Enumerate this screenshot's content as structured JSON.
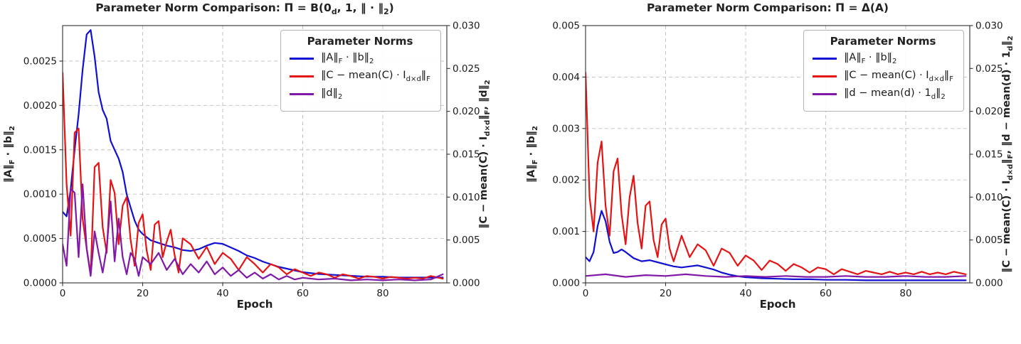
{
  "page": {
    "background": "#ffffff"
  },
  "chart_data": [
    {
      "type": "line",
      "title": "Parameter Norm Comparison: Π = B(0_d, 1, ‖ · ‖_2)",
      "xlabel": "Epoch",
      "ylabel_left": "‖A‖_F · ‖b‖_2",
      "ylabel_right": "‖C − mean(C) · I_{d×d}‖_F, ‖d‖_2",
      "legend_title": "Parameter Norms",
      "legend_position": "upper right",
      "grid": true,
      "xlim": [
        0,
        96
      ],
      "ylim_left": [
        0,
        0.0029
      ],
      "ylim_right": [
        0,
        0.03
      ],
      "xticks": {
        "values": [
          0,
          20,
          40,
          60,
          80
        ],
        "labels": [
          "0",
          "20",
          "40",
          "60",
          "80"
        ]
      },
      "yticks_left": {
        "values": [
          0,
          0.0005,
          0.001,
          0.0015,
          0.002,
          0.0025
        ],
        "labels": [
          "0.0000",
          "0.0005",
          "0.0010",
          "0.0015",
          "0.0020",
          "0.0025"
        ]
      },
      "yticks_right": {
        "values": [
          0,
          0.005,
          0.01,
          0.015,
          0.02,
          0.025,
          0.03
        ],
        "labels": [
          "0.000",
          "0.005",
          "0.010",
          "0.015",
          "0.020",
          "0.025",
          "0.030"
        ]
      },
      "series": [
        {
          "name": "A-frobenius-times-b-norm",
          "label": "‖A‖_F · ‖b‖_2",
          "color": "#1010d2",
          "axis": "left",
          "x": [
            0,
            1,
            2,
            3,
            4,
            5,
            6,
            7,
            8,
            9,
            10,
            11,
            12,
            13,
            14,
            15,
            16,
            17,
            18,
            19,
            20,
            22,
            24,
            26,
            28,
            30,
            32,
            34,
            36,
            38,
            40,
            42,
            44,
            46,
            48,
            50,
            52,
            54,
            56,
            58,
            60,
            64,
            68,
            72,
            76,
            80,
            84,
            88,
            92,
            95
          ],
          "y": [
            0.0008,
            0.00075,
            0.00105,
            0.0015,
            0.0019,
            0.0024,
            0.0028,
            0.00285,
            0.00255,
            0.00215,
            0.00195,
            0.00185,
            0.0016,
            0.0015,
            0.0014,
            0.00125,
            0.001,
            0.00085,
            0.0007,
            0.0006,
            0.00055,
            0.00048,
            0.00045,
            0.00042,
            0.0004,
            0.00037,
            0.00036,
            0.00038,
            0.00042,
            0.00045,
            0.00044,
            0.0004,
            0.00036,
            0.00031,
            0.00028,
            0.00024,
            0.00021,
            0.00018,
            0.00016,
            0.00014,
            0.00012,
            0.0001,
            9e-05,
            8e-05,
            7e-05,
            7e-05,
            6e-05,
            6e-05,
            6e-05,
            6e-05
          ]
        },
        {
          "name": "C-minus-mean-identity-frobenius",
          "label": "‖C − mean(C) · I_{d×d}‖_F",
          "color": "#e41414",
          "axis": "right",
          "x": [
            0,
            1,
            2,
            3,
            4,
            5,
            6,
            7,
            8,
            9,
            10,
            11,
            12,
            13,
            14,
            15,
            16,
            17,
            18,
            19,
            20,
            21,
            22,
            23,
            24,
            25,
            26,
            27,
            28,
            29,
            30,
            32,
            34,
            36,
            38,
            40,
            42,
            44,
            46,
            48,
            50,
            52,
            54,
            56,
            58,
            60,
            62,
            64,
            66,
            68,
            70,
            72,
            74,
            76,
            78,
            80,
            82,
            84,
            86,
            88,
            90,
            92,
            94,
            95
          ],
          "y": [
            0.0245,
            0.0115,
            0.0055,
            0.0175,
            0.018,
            0.0075,
            0.004,
            0.001,
            0.0135,
            0.014,
            0.0065,
            0.0035,
            0.012,
            0.0105,
            0.0045,
            0.009,
            0.01,
            0.005,
            0.002,
            0.007,
            0.008,
            0.0038,
            0.0015,
            0.0068,
            0.0072,
            0.003,
            0.0048,
            0.0062,
            0.0032,
            0.0012,
            0.0052,
            0.0045,
            0.0028,
            0.0042,
            0.0022,
            0.0035,
            0.0028,
            0.0015,
            0.003,
            0.0022,
            0.0012,
            0.0022,
            0.0018,
            0.001,
            0.0016,
            0.0012,
            0.0008,
            0.0012,
            0.001,
            0.0006,
            0.001,
            0.0008,
            0.0005,
            0.0008,
            0.0007,
            0.0005,
            0.0007,
            0.0006,
            0.0005,
            0.0006,
            0.0005,
            0.0008,
            0.0006,
            0.0005
          ]
        },
        {
          "name": "d-norm",
          "label": "‖d‖_2",
          "color": "#8018a8",
          "axis": "right",
          "x": [
            0,
            1,
            2,
            3,
            4,
            5,
            6,
            7,
            8,
            9,
            10,
            11,
            12,
            13,
            14,
            15,
            16,
            17,
            18,
            19,
            20,
            22,
            24,
            26,
            28,
            30,
            32,
            34,
            36,
            38,
            40,
            42,
            44,
            46,
            48,
            50,
            52,
            54,
            56,
            58,
            60,
            64,
            68,
            72,
            76,
            80,
            84,
            88,
            92,
            95
          ],
          "y": [
            0.0045,
            0.002,
            0.011,
            0.0105,
            0.003,
            0.0115,
            0.004,
            0.0008,
            0.006,
            0.0035,
            0.0012,
            0.004,
            0.0095,
            0.0025,
            0.0075,
            0.003,
            0.001,
            0.0035,
            0.0028,
            0.0008,
            0.003,
            0.0022,
            0.0035,
            0.0015,
            0.0028,
            0.001,
            0.0022,
            0.0012,
            0.0025,
            0.001,
            0.0018,
            0.0008,
            0.0015,
            0.0006,
            0.0012,
            0.0005,
            0.001,
            0.0004,
            0.0008,
            0.0004,
            0.0006,
            0.0004,
            0.0005,
            0.0003,
            0.0004,
            0.0003,
            0.0004,
            0.0003,
            0.0004,
            0.001
          ]
        }
      ]
    },
    {
      "type": "line",
      "title": "Parameter Norm Comparison: Π = Δ(A)",
      "xlabel": "Epoch",
      "ylabel_left": "‖A‖_F · ‖b‖_2",
      "ylabel_right": "‖C − mean(C) · I_{d×d}‖_F, ‖d − mean(d) · 1_d‖_2",
      "legend_title": "Parameter Norms",
      "legend_position": "upper right",
      "grid": true,
      "xlim": [
        0,
        96
      ],
      "ylim_left": [
        0,
        0.005
      ],
      "ylim_right": [
        0,
        0.03
      ],
      "xticks": {
        "values": [
          0,
          20,
          40,
          60,
          80
        ],
        "labels": [
          "0",
          "20",
          "40",
          "60",
          "80"
        ]
      },
      "yticks_left": {
        "values": [
          0,
          0.001,
          0.002,
          0.003,
          0.004,
          0.005
        ],
        "labels": [
          "0.000",
          "0.001",
          "0.002",
          "0.003",
          "0.004",
          "0.005"
        ]
      },
      "yticks_right": {
        "values": [
          0,
          0.005,
          0.01,
          0.015,
          0.02,
          0.025,
          0.03
        ],
        "labels": [
          "0.000",
          "0.005",
          "0.010",
          "0.015",
          "0.020",
          "0.025",
          "0.030"
        ]
      },
      "series": [
        {
          "name": "A-frobenius-times-b-norm",
          "label": "‖A‖_F · ‖b‖_2",
          "color": "#1010d2",
          "axis": "left",
          "x": [
            0,
            1,
            2,
            3,
            4,
            5,
            6,
            7,
            8,
            9,
            10,
            12,
            14,
            16,
            18,
            20,
            22,
            24,
            26,
            28,
            30,
            32,
            34,
            36,
            38,
            40,
            44,
            48,
            52,
            56,
            60,
            65,
            70,
            75,
            80,
            85,
            90,
            95
          ],
          "y": [
            0.0005,
            0.00042,
            0.0006,
            0.0011,
            0.0014,
            0.0012,
            0.0008,
            0.00058,
            0.0006,
            0.00065,
            0.0006,
            0.00048,
            0.00042,
            0.00044,
            0.0004,
            0.00036,
            0.00032,
            0.0003,
            0.00032,
            0.00034,
            0.0003,
            0.00026,
            0.0002,
            0.00016,
            0.00013,
            0.00011,
            9e-05,
            8e-05,
            7e-05,
            7e-05,
            6e-05,
            6e-05,
            5e-05,
            5e-05,
            5e-05,
            5e-05,
            5e-05,
            5e-05
          ]
        },
        {
          "name": "C-minus-mean-identity-frobenius",
          "label": "‖C − mean(C) · I_{d×d}‖_F",
          "color": "#e41414",
          "axis": "right",
          "x": [
            0,
            1,
            2,
            3,
            4,
            5,
            6,
            7,
            8,
            9,
            10,
            11,
            12,
            13,
            14,
            15,
            16,
            17,
            18,
            19,
            20,
            21,
            22,
            24,
            26,
            28,
            30,
            32,
            34,
            36,
            38,
            40,
            42,
            44,
            46,
            48,
            50,
            52,
            54,
            56,
            58,
            60,
            62,
            64,
            66,
            68,
            70,
            72,
            74,
            76,
            78,
            80,
            82,
            84,
            86,
            88,
            90,
            92,
            94,
            95
          ],
          "y": [
            0.0245,
            0.01,
            0.006,
            0.014,
            0.0165,
            0.009,
            0.0055,
            0.013,
            0.0145,
            0.008,
            0.0045,
            0.01,
            0.0125,
            0.007,
            0.004,
            0.009,
            0.0095,
            0.005,
            0.003,
            0.0068,
            0.0075,
            0.004,
            0.0025,
            0.0055,
            0.003,
            0.0045,
            0.0038,
            0.002,
            0.004,
            0.0035,
            0.002,
            0.0032,
            0.0026,
            0.0015,
            0.0026,
            0.0022,
            0.0014,
            0.0022,
            0.0018,
            0.0012,
            0.0018,
            0.0016,
            0.001,
            0.0016,
            0.0013,
            0.001,
            0.0014,
            0.0012,
            0.001,
            0.0013,
            0.001,
            0.0012,
            0.001,
            0.0013,
            0.001,
            0.0012,
            0.001,
            0.0013,
            0.0011,
            0.001
          ]
        },
        {
          "name": "d-minus-mean-ones-norm",
          "label": "‖d − mean(d) · 1_d‖_2",
          "color": "#8018a8",
          "axis": "right",
          "x": [
            0,
            5,
            10,
            15,
            20,
            25,
            30,
            35,
            40,
            45,
            50,
            55,
            60,
            65,
            70,
            75,
            80,
            85,
            90,
            95
          ],
          "y": [
            0.0008,
            0.001,
            0.0007,
            0.0009,
            0.0008,
            0.001,
            0.0008,
            0.0007,
            0.0008,
            0.0007,
            0.0008,
            0.0007,
            0.0007,
            0.0008,
            0.0007,
            0.0007,
            0.0008,
            0.0007,
            0.0007,
            0.0008
          ]
        }
      ]
    }
  ]
}
